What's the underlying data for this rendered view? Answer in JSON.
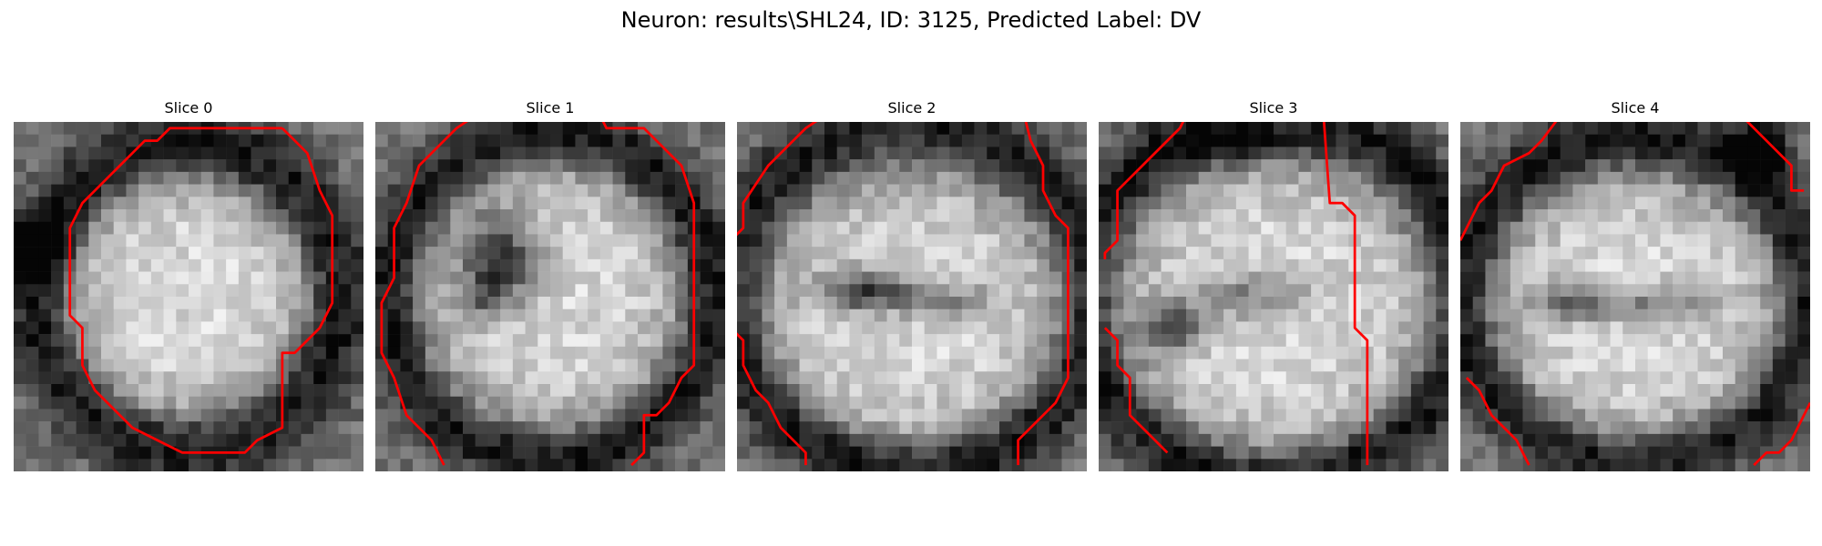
{
  "figure": {
    "title": "Neuron: results\\SHL24, ID: 3125, Predicted Label: DV"
  },
  "overlay_color": "#ff0000",
  "colormap": "gray",
  "panels": [
    {
      "title": "Slice 0"
    },
    {
      "title": "Slice 1"
    },
    {
      "title": "Slice 2"
    },
    {
      "title": "Slice 3"
    },
    {
      "title": "Slice 4"
    }
  ]
}
